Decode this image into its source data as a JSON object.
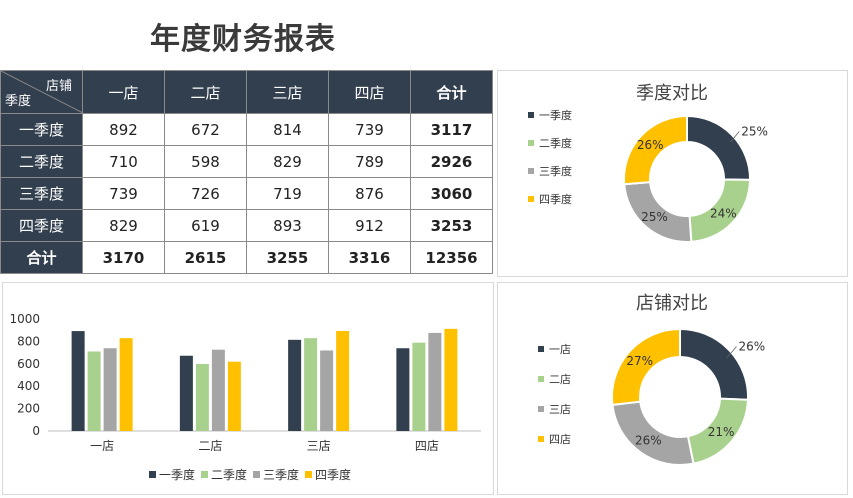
{
  "title": "年度财务报表",
  "table": {
    "corner_top": "店铺",
    "corner_bottom": "季度",
    "columns": [
      "一店",
      "二店",
      "三店",
      "四店",
      "合计"
    ],
    "rows": [
      {
        "label": "一季度",
        "values": [
          "892",
          "672",
          "814",
          "739",
          "3117"
        ]
      },
      {
        "label": "二季度",
        "values": [
          "710",
          "598",
          "829",
          "789",
          "2926"
        ]
      },
      {
        "label": "三季度",
        "values": [
          "739",
          "726",
          "719",
          "876",
          "3060"
        ]
      },
      {
        "label": "四季度",
        "values": [
          "829",
          "619",
          "893",
          "912",
          "3253"
        ]
      },
      {
        "label": "合计",
        "values": [
          "3170",
          "2615",
          "3255",
          "3316",
          "12356"
        ]
      }
    ]
  },
  "colors": {
    "q1": "#323f4f",
    "q2": "#a9d18e",
    "q3": "#a5a5a5",
    "q4": "#ffc000",
    "header": "#323f4f"
  },
  "chart_data": [
    {
      "type": "pie",
      "title": "季度对比",
      "labels": [
        "一季度",
        "二季度",
        "三季度",
        "四季度"
      ],
      "values": [
        3117,
        2926,
        3060,
        3253
      ],
      "data_labels": [
        "25%",
        "24%",
        "25%",
        "26%"
      ],
      "legend": "left"
    },
    {
      "type": "bar",
      "title": "",
      "categories": [
        "一店",
        "二店",
        "三店",
        "四店"
      ],
      "series": [
        {
          "name": "一季度",
          "values": [
            892,
            672,
            814,
            739
          ]
        },
        {
          "name": "二季度",
          "values": [
            710,
            598,
            829,
            789
          ]
        },
        {
          "name": "三季度",
          "values": [
            739,
            726,
            719,
            876
          ]
        },
        {
          "name": "四季度",
          "values": [
            829,
            619,
            893,
            912
          ]
        }
      ],
      "yticks": [
        "0",
        "200",
        "400",
        "600",
        "800",
        "1000"
      ],
      "ylim": [
        0,
        1000
      ],
      "legend": "bottom"
    },
    {
      "type": "pie",
      "title": "店铺对比",
      "labels": [
        "一店",
        "二店",
        "三店",
        "四店"
      ],
      "values": [
        3170,
        2615,
        3255,
        3316
      ],
      "data_labels": [
        "26%",
        "21%",
        "26%",
        "27%"
      ],
      "legend": "left"
    }
  ]
}
